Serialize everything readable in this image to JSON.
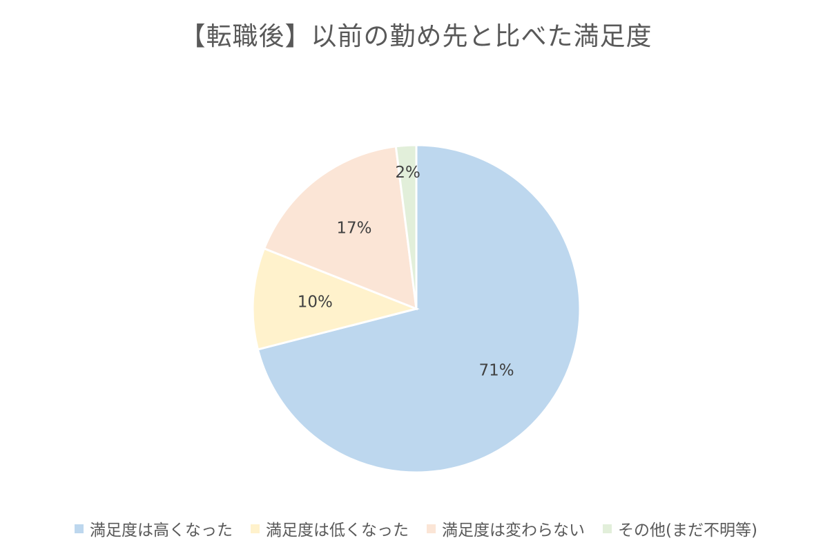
{
  "chart_data": {
    "type": "pie",
    "title": "【転職後】以前の勤め先と比べた満足度",
    "categories": [
      "満足度は高くなった",
      "満足度は低くなった",
      "満足度は変わらない",
      "その他(まだ不明等)"
    ],
    "values": [
      71,
      10,
      17,
      2
    ],
    "data_labels": [
      "71%",
      "10%",
      "17%",
      "2%"
    ],
    "colors": [
      "#BDD7EE",
      "#FFF2CC",
      "#FBE5D6",
      "#E2EFDA"
    ],
    "legend": "bottom",
    "start_angle_deg": 0,
    "direction": "clockwise"
  }
}
